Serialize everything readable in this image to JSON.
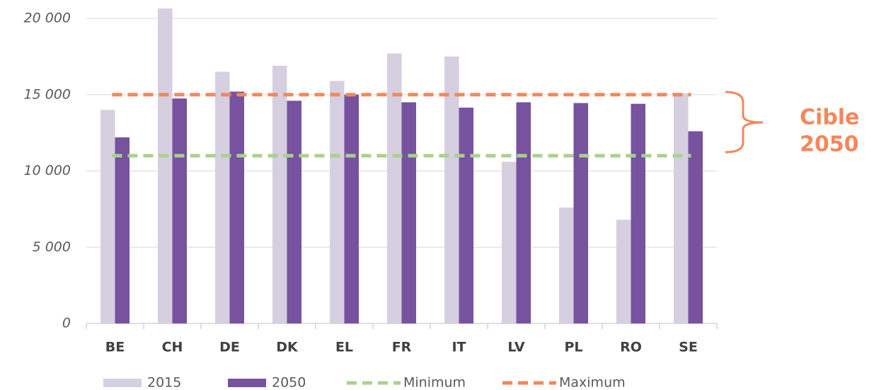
{
  "chart_data": {
    "type": "bar",
    "categories": [
      "BE",
      "CH",
      "DE",
      "DK",
      "EL",
      "FR",
      "IT",
      "LV",
      "PL",
      "RO",
      "SE"
    ],
    "series": [
      {
        "name": "2015",
        "color": "#d5cfe0",
        "values": [
          14000,
          20650,
          16500,
          16900,
          15900,
          17700,
          17500,
          10600,
          7600,
          6800,
          15100
        ]
      },
      {
        "name": "2050",
        "color": "#76529f",
        "values": [
          12200,
          14750,
          15200,
          14600,
          15000,
          14500,
          14150,
          14500,
          14450,
          14400,
          12600
        ]
      }
    ],
    "reference_lines": [
      {
        "name": "Minimum",
        "color": "#a9d18e",
        "value": 11000
      },
      {
        "name": "Maximum",
        "color": "#f4875a",
        "value": 15000
      }
    ],
    "annotation": [
      "Cible",
      "2050"
    ],
    "ylim": [
      0,
      20000
    ],
    "yticks": [
      0,
      {
        "value": 5000,
        "label": "5 000"
      },
      {
        "value": 10000,
        "label": "10 000"
      },
      {
        "value": 15000,
        "label": "15 000"
      },
      {
        "value": 20000,
        "label": "20 000"
      }
    ],
    "grid": true,
    "legend": "bottom"
  }
}
